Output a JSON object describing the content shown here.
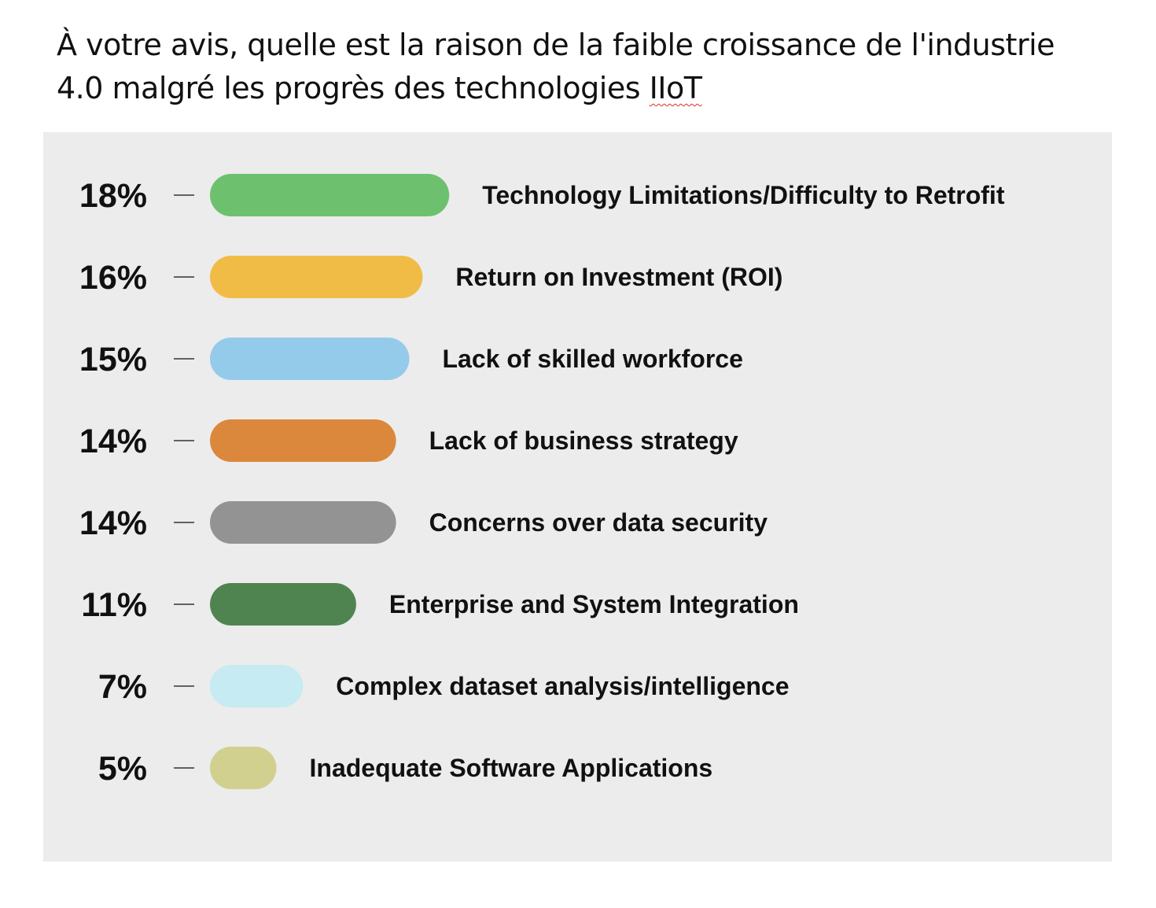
{
  "question": {
    "text_main": "À votre avis, quelle est la raison de la faible croissance de l'industrie 4.0 malgré les progrès des technologies ",
    "text_flagged": "IIoT"
  },
  "chart_data": {
    "type": "bar",
    "orientation": "horizontal",
    "categories": [
      "Technology Limitations/Difficulty to Retrofit",
      "Return on Investment (ROI)",
      "Lack of skilled workforce",
      "Lack of business strategy",
      "Concerns over data security",
      "Enterprise and System Integration",
      "Complex dataset analysis/intelligence",
      "Inadequate Software Applications"
    ],
    "values": [
      18,
      16,
      15,
      14,
      14,
      11,
      7,
      5
    ],
    "value_labels": [
      "18%",
      "16%",
      "15%",
      "14%",
      "14%",
      "11%",
      "7%",
      "5%"
    ],
    "colors": [
      "#6dc06e",
      "#f1bc46",
      "#94cbeb",
      "#db883c",
      "#939393",
      "#4f8451",
      "#c6ebf2",
      "#d1d08f"
    ],
    "unit": "%",
    "grid": false,
    "legend": "none"
  }
}
